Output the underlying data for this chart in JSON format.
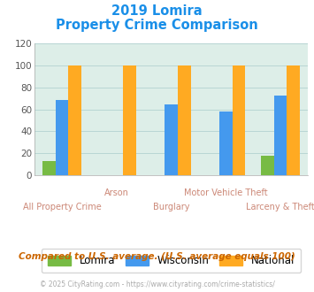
{
  "title_line1": "2019 Lomira",
  "title_line2": "Property Crime Comparison",
  "categories": [
    "All Property Crime",
    "Arson",
    "Burglary",
    "Motor Vehicle Theft",
    "Larceny & Theft"
  ],
  "lomira": [
    13,
    0,
    0,
    0,
    18
  ],
  "wisconsin": [
    69,
    0,
    65,
    58,
    73
  ],
  "national": [
    100,
    100,
    100,
    100,
    100
  ],
  "color_lomira": "#77bb44",
  "color_wisconsin": "#4499ee",
  "color_national": "#ffaa22",
  "color_bg_plot": "#ddeee8",
  "color_title": "#1a8fe8",
  "color_footnote": "#cc6600",
  "color_copyright": "#aaaaaa",
  "color_xlabel": "#cc8877",
  "ylim": [
    0,
    120
  ],
  "yticks": [
    0,
    20,
    40,
    60,
    80,
    100,
    120
  ],
  "xlabel_fontsize": 7.0,
  "title_fontsize": 10.5,
  "legend_labels": [
    "Lomira",
    "Wisconsin",
    "National"
  ],
  "footnote": "Compared to U.S. average. (U.S. average equals 100)",
  "copyright": "© 2025 CityRating.com - https://www.cityrating.com/crime-statistics/",
  "stagger_upper": [
    1,
    3
  ],
  "stagger_lower": [
    0,
    2,
    4
  ]
}
